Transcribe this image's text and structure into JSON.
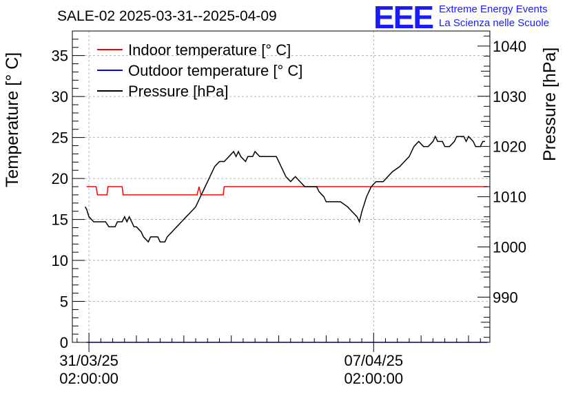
{
  "chart_data": {
    "type": "line",
    "title": "SALE-02 2025-03-31--2025-04-09",
    "ylabel": "Temperature [° C]",
    "y2label": "Pressure [hPa]",
    "ylim": [
      0,
      38
    ],
    "y2lim": [
      981,
      1043
    ],
    "yticks": [
      0,
      5,
      10,
      15,
      20,
      25,
      30,
      35
    ],
    "y2ticks": [
      990,
      1000,
      1010,
      1020,
      1030,
      1040
    ],
    "xlim": [
      -0.35,
      8.45
    ],
    "xticks": [
      {
        "x": 0,
        "line1": "31/03/25",
        "line2": "02:00:00"
      },
      {
        "x": 6,
        "line1": "07/04/25",
        "line2": "02:00:00"
      }
    ],
    "grid": true,
    "legend_position": "top-left",
    "series": [
      {
        "name": "Indoor temperature [° C]",
        "axis": "left",
        "color": "#ff0000",
        "points": [
          [
            -0.05,
            19
          ],
          [
            0.15,
            19
          ],
          [
            0.18,
            18
          ],
          [
            0.38,
            18
          ],
          [
            0.4,
            19
          ],
          [
            0.7,
            19
          ],
          [
            0.72,
            18
          ],
          [
            2.28,
            18
          ],
          [
            2.32,
            19
          ],
          [
            2.36,
            18
          ],
          [
            2.83,
            18
          ],
          [
            2.85,
            19
          ],
          [
            8.4,
            19
          ]
        ]
      },
      {
        "name": "Outdoor temperature [° C]",
        "axis": "left",
        "color": "#0000ff",
        "points": [
          [
            -0.05,
            0
          ],
          [
            8.4,
            0
          ]
        ]
      },
      {
        "name": "Pressure [hPa]",
        "axis": "right",
        "color": "#000000",
        "points": [
          [
            -0.08,
            1008
          ],
          [
            -0.05,
            1007.5
          ],
          [
            0.0,
            1006
          ],
          [
            0.1,
            1005
          ],
          [
            0.35,
            1005
          ],
          [
            0.42,
            1004
          ],
          [
            0.55,
            1004
          ],
          [
            0.6,
            1005
          ],
          [
            0.7,
            1005
          ],
          [
            0.75,
            1006
          ],
          [
            0.8,
            1005
          ],
          [
            0.85,
            1006
          ],
          [
            0.9,
            1005
          ],
          [
            0.95,
            1004
          ],
          [
            1.0,
            1004
          ],
          [
            1.1,
            1003
          ],
          [
            1.15,
            1002
          ],
          [
            1.25,
            1001
          ],
          [
            1.3,
            1002
          ],
          [
            1.45,
            1002
          ],
          [
            1.5,
            1001
          ],
          [
            1.6,
            1001
          ],
          [
            1.65,
            1002
          ],
          [
            1.75,
            1003
          ],
          [
            1.85,
            1004
          ],
          [
            1.95,
            1005
          ],
          [
            2.05,
            1006
          ],
          [
            2.15,
            1007
          ],
          [
            2.25,
            1008
          ],
          [
            2.35,
            1010
          ],
          [
            2.45,
            1012
          ],
          [
            2.55,
            1014
          ],
          [
            2.65,
            1016
          ],
          [
            2.75,
            1017
          ],
          [
            2.85,
            1017
          ],
          [
            2.95,
            1018
          ],
          [
            3.05,
            1019
          ],
          [
            3.1,
            1018
          ],
          [
            3.15,
            1019
          ],
          [
            3.2,
            1018
          ],
          [
            3.3,
            1017
          ],
          [
            3.35,
            1018
          ],
          [
            3.45,
            1018
          ],
          [
            3.5,
            1019
          ],
          [
            3.6,
            1018
          ],
          [
            3.95,
            1018
          ],
          [
            4.05,
            1016
          ],
          [
            4.15,
            1014
          ],
          [
            4.25,
            1013
          ],
          [
            4.35,
            1014
          ],
          [
            4.45,
            1013
          ],
          [
            4.55,
            1012
          ],
          [
            4.8,
            1012
          ],
          [
            4.85,
            1011
          ],
          [
            4.95,
            1010
          ],
          [
            5.0,
            1009
          ],
          [
            5.3,
            1009
          ],
          [
            5.45,
            1008
          ],
          [
            5.55,
            1007
          ],
          [
            5.65,
            1006
          ],
          [
            5.7,
            1005
          ],
          [
            5.75,
            1007
          ],
          [
            5.85,
            1010
          ],
          [
            5.95,
            1012
          ],
          [
            6.05,
            1013
          ],
          [
            6.2,
            1013
          ],
          [
            6.3,
            1014
          ],
          [
            6.4,
            1015
          ],
          [
            6.55,
            1016
          ],
          [
            6.65,
            1017
          ],
          [
            6.75,
            1018
          ],
          [
            6.85,
            1020
          ],
          [
            6.95,
            1021
          ],
          [
            7.05,
            1020
          ],
          [
            7.15,
            1020
          ],
          [
            7.25,
            1021
          ],
          [
            7.3,
            1022
          ],
          [
            7.35,
            1021
          ],
          [
            7.45,
            1021
          ],
          [
            7.5,
            1020
          ],
          [
            7.6,
            1020
          ],
          [
            7.7,
            1021
          ],
          [
            7.75,
            1022
          ],
          [
            7.9,
            1022
          ],
          [
            7.95,
            1021
          ],
          [
            8.0,
            1022
          ],
          [
            8.1,
            1021
          ],
          [
            8.15,
            1020
          ],
          [
            8.25,
            1020
          ],
          [
            8.3,
            1021
          ],
          [
            8.35,
            1021
          ]
        ]
      }
    ]
  },
  "logo": {
    "letters": "EEE",
    "line1": "Extreme Energy Events",
    "line2": "La Scienza nelle Scuole"
  }
}
